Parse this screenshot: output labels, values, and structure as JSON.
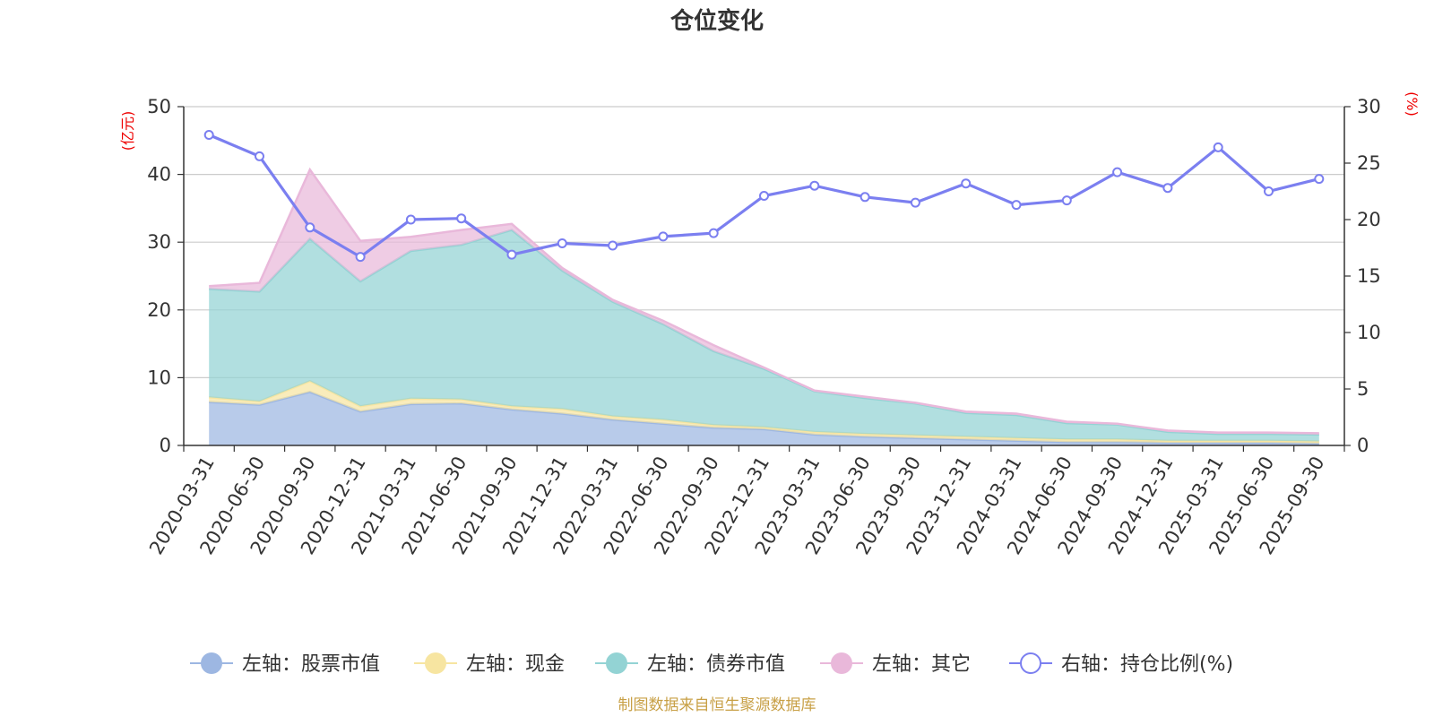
{
  "chart_data": {
    "type": "area",
    "title": "仓位变化",
    "left_axis_unit": "(亿元)",
    "right_axis_unit": "(%)",
    "left_ylim": [
      0,
      50
    ],
    "left_ticks": [
      "0",
      "10",
      "20",
      "30",
      "40",
      "50"
    ],
    "right_ylim": [
      0,
      30
    ],
    "right_ticks": [
      "0",
      "5",
      "10",
      "15",
      "20",
      "25",
      "30"
    ],
    "grid": true,
    "legend_position": "bottom",
    "categories": [
      "2020-03-31",
      "2020-06-30",
      "2020-09-30",
      "2020-12-31",
      "2021-03-31",
      "2021-06-30",
      "2021-09-30",
      "2021-12-31",
      "2022-03-31",
      "2022-06-30",
      "2022-09-30",
      "2022-12-31",
      "2023-03-31",
      "2023-06-30",
      "2023-09-30",
      "2023-12-31",
      "2024-03-31",
      "2024-06-30",
      "2024-09-30",
      "2024-12-31",
      "2025-03-31",
      "2025-06-30",
      "2025-09-30"
    ],
    "series": [
      {
        "name": "左轴：股票市值",
        "axis": "left",
        "stack": true,
        "color": "#9db7e2",
        "values": [
          6.4,
          6.0,
          7.9,
          5.0,
          6.1,
          6.2,
          5.3,
          4.7,
          3.8,
          3.2,
          2.6,
          2.4,
          1.6,
          1.3,
          1.1,
          0.9,
          0.7,
          0.5,
          0.5,
          0.4,
          0.4,
          0.4,
          0.3
        ]
      },
      {
        "name": "左轴：现金",
        "axis": "left",
        "stack": true,
        "color": "#f7e5a1",
        "values": [
          0.7,
          0.5,
          1.6,
          0.8,
          0.8,
          0.6,
          0.5,
          0.7,
          0.5,
          0.6,
          0.4,
          0.3,
          0.4,
          0.4,
          0.4,
          0.4,
          0.4,
          0.4,
          0.4,
          0.3,
          0.3,
          0.3,
          0.3
        ]
      },
      {
        "name": "左轴：债券市值",
        "axis": "left",
        "stack": true,
        "color": "#93d3d4",
        "values": [
          16.0,
          16.2,
          21.0,
          18.4,
          21.8,
          22.8,
          26.0,
          20.4,
          16.9,
          14.1,
          10.9,
          8.6,
          6.0,
          5.3,
          4.7,
          3.5,
          3.4,
          2.4,
          2.2,
          1.3,
          1.0,
          1.0,
          1.0
        ]
      },
      {
        "name": "左轴：其它",
        "axis": "left",
        "stack": true,
        "color": "#e9b8da",
        "values": [
          0.4,
          1.3,
          10.2,
          6.0,
          2.1,
          2.2,
          0.9,
          0.4,
          0.3,
          0.5,
          0.9,
          0.2,
          0.1,
          0.2,
          0.1,
          0.2,
          0.2,
          0.2,
          0.1,
          0.2,
          0.2,
          0.2,
          0.2
        ]
      },
      {
        "name": "右轴：持仓比例(%)",
        "axis": "right",
        "stack": false,
        "color": "#7b7ff0",
        "values": [
          27.5,
          25.6,
          19.3,
          16.7,
          20.0,
          20.1,
          16.9,
          17.9,
          17.7,
          18.5,
          18.8,
          22.1,
          23.0,
          22.0,
          21.5,
          23.2,
          21.3,
          21.7,
          24.2,
          22.8,
          26.4,
          22.5,
          23.6
        ]
      }
    ],
    "source": "制图数据来自恒生聚源数据库"
  }
}
